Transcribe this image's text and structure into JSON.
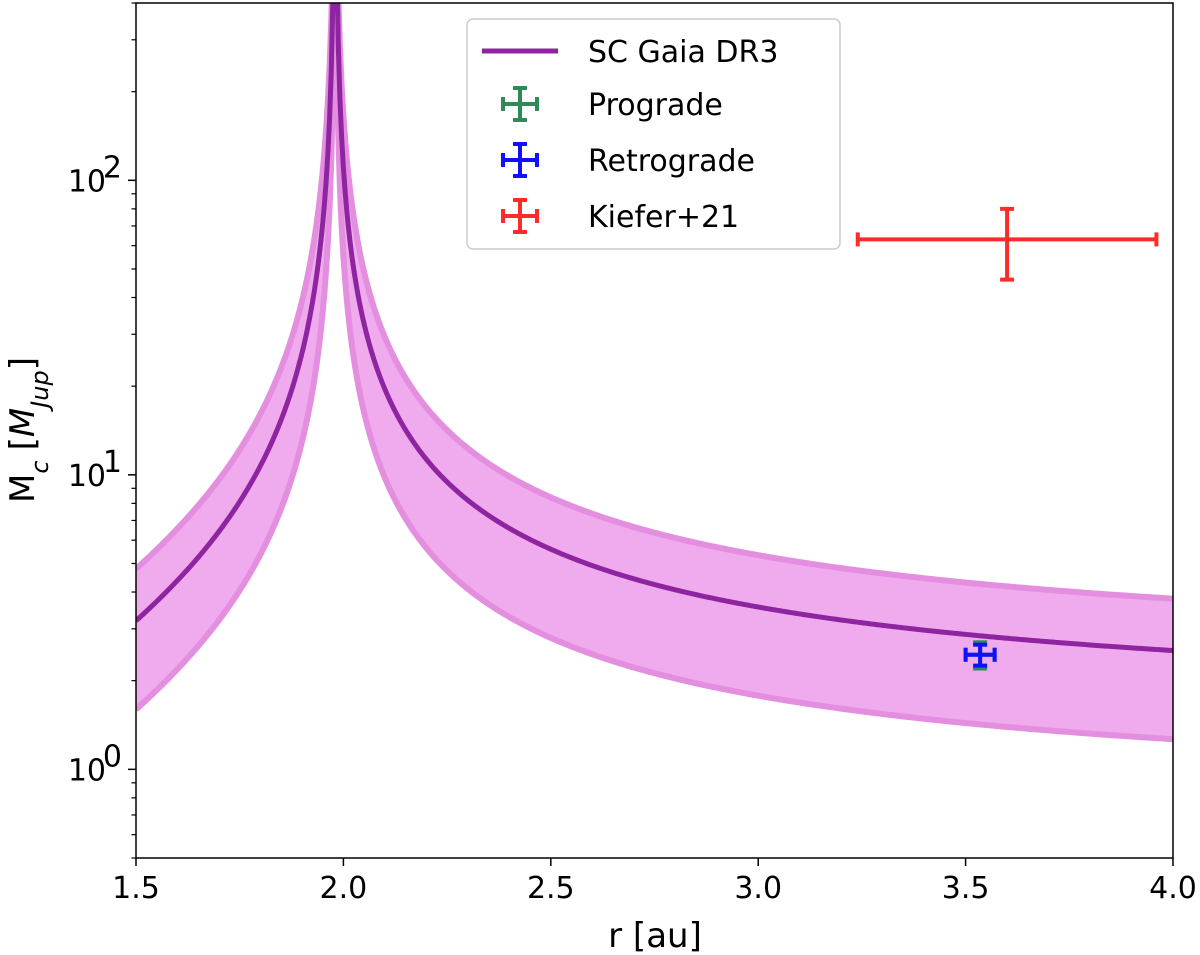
{
  "chart_data": {
    "type": "line",
    "xlabel": "r [au]",
    "ylabel": "M_c [M_Jup]",
    "ylabel_main": "M",
    "ylabel_sub": "c",
    "ylabel_unit_open": "[",
    "ylabel_unit_main": "M",
    "ylabel_unit_sub": "Jup",
    "ylabel_unit_close": "]",
    "xlim": [
      1.5,
      4.0
    ],
    "ylim": [
      0.5,
      400
    ],
    "yscale": "log",
    "x_ticks": [
      1.5,
      2.0,
      2.5,
      3.0,
      3.5,
      4.0
    ],
    "x_tick_labels": [
      "1.5",
      "2.0",
      "2.5",
      "3.0",
      "3.5",
      "4.0"
    ],
    "y_ticks": [
      {
        "value": 1,
        "base": "10",
        "exp": "0"
      },
      {
        "value": 10,
        "base": "10",
        "exp": "1"
      },
      {
        "value": 100,
        "base": "10",
        "exp": "2"
      }
    ],
    "grid": false,
    "legend_position": "top-center",
    "legend": [
      {
        "label": "SC Gaia DR3",
        "kind": "line",
        "color": "#8e24a0"
      },
      {
        "label": "Prograde",
        "kind": "errorbar",
        "color": "#2e8b57"
      },
      {
        "label": "Retrograde",
        "kind": "errorbar",
        "color": "#1010ff"
      },
      {
        "label": "Kiefer+21",
        "kind": "errorbar",
        "color": "#ff2a2a"
      }
    ],
    "curve_model": {
      "description": "M(r) = K / |1 - (r/r0)^(-1.5)|, band = central x/÷ factor",
      "K": 1.65,
      "r0": 1.98,
      "upper_factor": 1.5,
      "lower_factor": 0.5,
      "x_start": 1.5,
      "x_end": 4.0,
      "samples": 600
    },
    "series": [
      {
        "name": "SC Gaia DR3 band",
        "kind": "band",
        "color": "#ec9cea",
        "edge_color": "#e48ee0"
      },
      {
        "name": "SC Gaia DR3",
        "kind": "line",
        "color": "#8e24a0"
      },
      {
        "name": "Prograde",
        "kind": "errorbar",
        "color": "#2e8b57",
        "x": 3.535,
        "y": 2.45,
        "xerr": 0.035,
        "yerr_low": 0.25,
        "yerr_high": 0.25
      },
      {
        "name": "Retrograde",
        "kind": "errorbar",
        "color": "#1010ff",
        "x": 3.535,
        "y": 2.45,
        "xerr": 0.035,
        "yerr_low": 0.2,
        "yerr_high": 0.2
      },
      {
        "name": "Kiefer+21",
        "kind": "errorbar",
        "color": "#ff2a2a",
        "x": 3.6,
        "y": 63,
        "xerr_low": 0.36,
        "xerr_high": 0.36,
        "yerr_low": 17,
        "yerr_high": 17
      }
    ]
  }
}
